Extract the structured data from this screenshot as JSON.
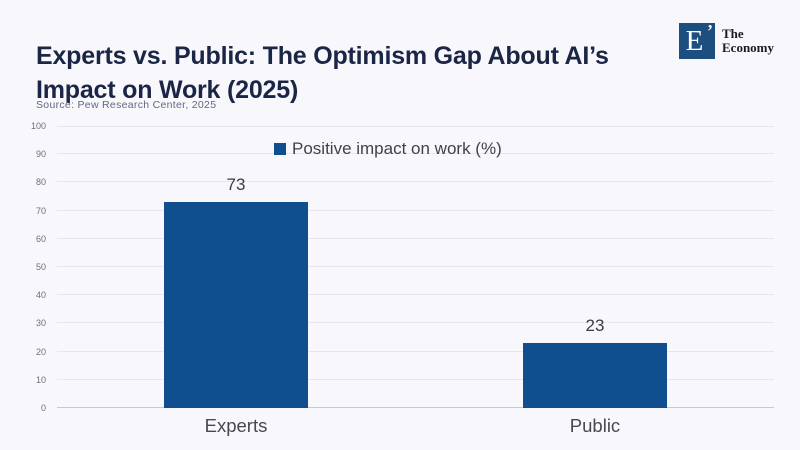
{
  "header": {
    "title": "Experts vs. Public: The Optimism Gap About AI’s\nImpact on Work (2025)"
  },
  "logo": {
    "monogram": "E",
    "mark": "’",
    "name_line1": "The",
    "name_line2": "Economy"
  },
  "source": "Source: Pew Research Center, 2025",
  "chart_data": {
    "type": "bar",
    "title": "Experts vs. Public: The Optimism Gap About AI’s Impact on Work (2025)",
    "categories": [
      "Experts",
      "Public"
    ],
    "values": [
      73,
      23
    ],
    "series_label": "Positive impact on work (%)",
    "xlabel": "",
    "ylabel": "",
    "ylim": [
      0,
      100
    ],
    "ytick_step": 10,
    "grid": true,
    "legend_position": "top-center",
    "bar_color": "#0f4f8d",
    "value_labels_shown": true,
    "source": "Pew Research Center, 2025"
  },
  "colors": {
    "background": "#f8f8fc",
    "title-text": "#1b2546",
    "bar": "#0f4f8d",
    "logo-navy": "#1c4e80",
    "gridline": "#e5e7ed",
    "axis-line": "#c9cad0",
    "tick-label": "#6e6f74",
    "value-label": "#3b3c40",
    "category-label": "#47494d",
    "legend-text": "#3f4348",
    "source-text": "#5e6980"
  }
}
